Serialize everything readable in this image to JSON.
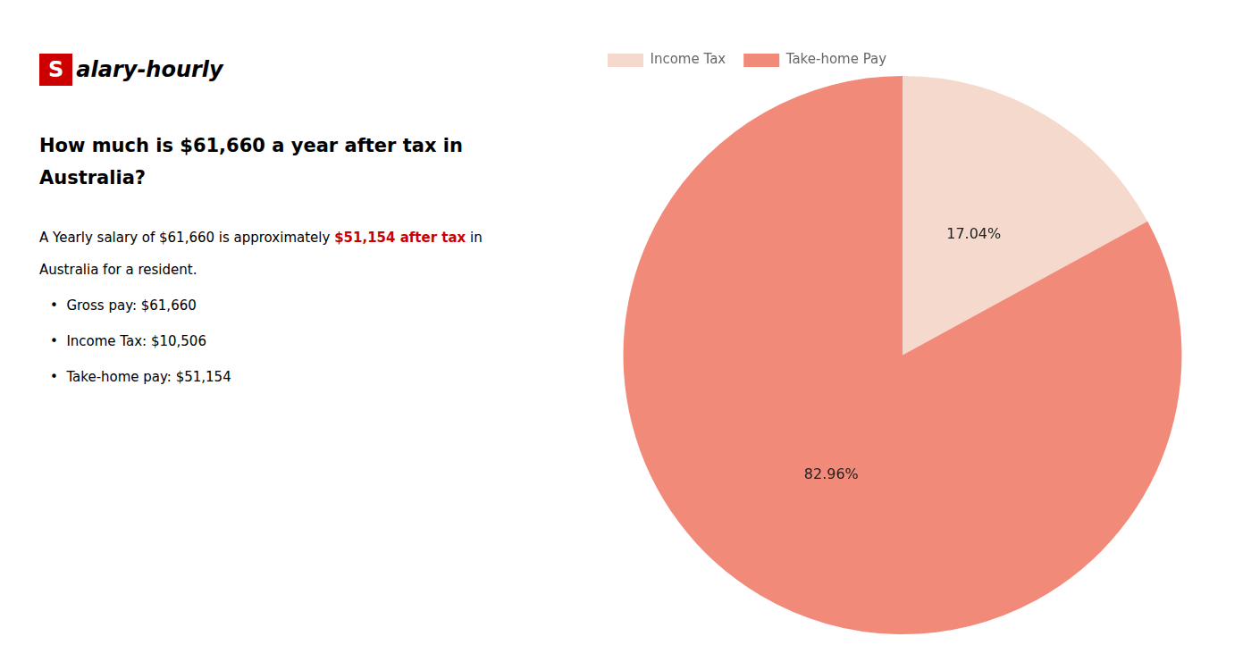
{
  "chart_data": {
    "type": "pie",
    "title": [
      "How much is $61,660 a year after tax in",
      "Australia?"
    ],
    "categories": [
      "Income Tax",
      "Take-home Pay"
    ],
    "values": [
      17.04,
      82.96
    ],
    "value_labels": [
      "17.04%",
      "82.96%"
    ],
    "colors": [
      "#f5d9cc",
      "#f28a7a"
    ],
    "data_labels": true,
    "legend": "upper left",
    "annotations": [
      [
        {
          "text": "S",
          "color": "#cc0000"
        },
        {
          "text": "alary-hourly"
        }
      ],
      [
        {
          "text": "A Yearly salary of $61,660 is approximately "
        },
        {
          "text": "$51,154 after tax",
          "color": "#cc0000"
        },
        {
          "text": " in"
        }
      ],
      [
        {
          "text": "Australia for a resident."
        }
      ],
      [
        {
          "text": "•  Gross pay: $61,660"
        }
      ],
      [
        {
          "text": "•  Income Tax: $10,506"
        }
      ],
      [
        {
          "text": "•  Take-home pay: $51,154"
        }
      ]
    ]
  }
}
